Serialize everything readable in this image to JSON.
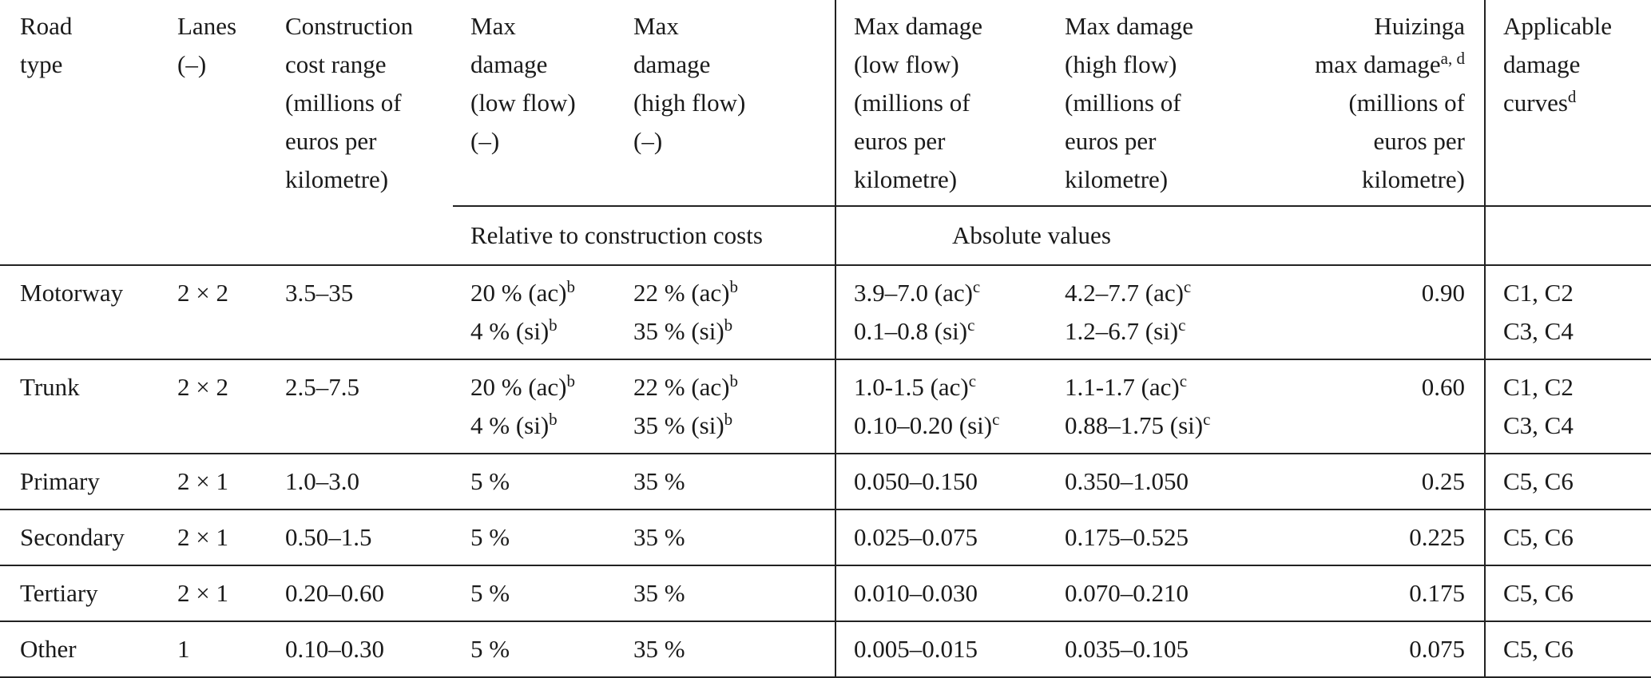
{
  "header": {
    "road_type": [
      "Road",
      "type"
    ],
    "lanes": [
      "Lanes",
      "(–)"
    ],
    "construction_cost": [
      "Construction",
      "cost range",
      "(millions of",
      "euros per",
      "kilometre)"
    ],
    "max_damage_low_rel": [
      "Max",
      "damage",
      "(low flow)",
      "(–)"
    ],
    "max_damage_high_rel": [
      "Max",
      "damage",
      "(high flow)",
      "(–)"
    ],
    "max_damage_low_abs": [
      "Max damage",
      "(low flow)",
      "(millions of",
      "euros per",
      "kilometre)"
    ],
    "max_damage_high_abs": [
      "Max damage",
      "(high flow)",
      "(millions of",
      "euros per",
      "kilometre)"
    ],
    "huizinga_first": "Huizinga",
    "huizinga_second": "max damage",
    "huizinga_sup": "a, d",
    "huizinga_rest": [
      "(millions of",
      "euros per",
      "kilometre)"
    ],
    "curves_lines": [
      "Applicable",
      "damage"
    ],
    "curves_last": "curves",
    "curves_sup": "d"
  },
  "subheader": {
    "relative": "Relative to construction costs",
    "absolute": "Absolute values"
  },
  "rows": [
    {
      "road_type": "Motorway",
      "lanes": "2 × 2",
      "cost": "3.5–35",
      "low_rel": [
        {
          "t": "20 % (ac)",
          "s": "b"
        },
        {
          "t": "4 % (si)",
          "s": "b"
        }
      ],
      "high_rel": [
        {
          "t": "22 % (ac)",
          "s": "b"
        },
        {
          "t": "35 % (si)",
          "s": "b"
        }
      ],
      "low_abs": [
        {
          "t": "3.9–7.0 (ac)",
          "s": "c"
        },
        {
          "t": "0.1–0.8 (si)",
          "s": "c"
        }
      ],
      "high_abs": [
        {
          "t": "4.2–7.7 (ac)",
          "s": "c"
        },
        {
          "t": "1.2–6.7 (si)",
          "s": "c"
        }
      ],
      "huizinga": "0.90",
      "curves": [
        "C1, C2",
        "C3, C4"
      ]
    },
    {
      "road_type": "Trunk",
      "lanes": "2 × 2",
      "cost": "2.5–7.5",
      "low_rel": [
        {
          "t": "20 % (ac)",
          "s": "b"
        },
        {
          "t": "4 % (si)",
          "s": "b"
        }
      ],
      "high_rel": [
        {
          "t": "22 % (ac)",
          "s": "b"
        },
        {
          "t": "35 % (si)",
          "s": "b"
        }
      ],
      "low_abs": [
        {
          "t": "1.0-1.5 (ac)",
          "s": "c"
        },
        {
          "t": "0.10–0.20 (si)",
          "s": "c"
        }
      ],
      "high_abs": [
        {
          "t": "1.1-1.7 (ac)",
          "s": "c"
        },
        {
          "t": "0.88–1.75 (si)",
          "s": "c"
        }
      ],
      "huizinga": "0.60",
      "curves": [
        "C1, C2",
        "C3, C4"
      ]
    },
    {
      "road_type": "Primary",
      "lanes": "2 × 1",
      "cost": "1.0–3.0",
      "low_rel": [
        {
          "t": "5 %",
          "s": ""
        }
      ],
      "high_rel": [
        {
          "t": "35 %",
          "s": ""
        }
      ],
      "low_abs": [
        {
          "t": "0.050–0.150",
          "s": ""
        }
      ],
      "high_abs": [
        {
          "t": "0.350–1.050",
          "s": ""
        }
      ],
      "huizinga": "0.25",
      "curves": [
        "C5, C6"
      ]
    },
    {
      "road_type": "Secondary",
      "lanes": "2 × 1",
      "cost": "0.50–1.5",
      "low_rel": [
        {
          "t": "5 %",
          "s": ""
        }
      ],
      "high_rel": [
        {
          "t": "35 %",
          "s": ""
        }
      ],
      "low_abs": [
        {
          "t": "0.025–0.075",
          "s": ""
        }
      ],
      "high_abs": [
        {
          "t": "0.175–0.525",
          "s": ""
        }
      ],
      "huizinga": "0.225",
      "curves": [
        "C5, C6"
      ]
    },
    {
      "road_type": "Tertiary",
      "lanes": "2 × 1",
      "cost": "0.20–0.60",
      "low_rel": [
        {
          "t": "5 %",
          "s": ""
        }
      ],
      "high_rel": [
        {
          "t": "35 %",
          "s": ""
        }
      ],
      "low_abs": [
        {
          "t": "0.010–0.030",
          "s": ""
        }
      ],
      "high_abs": [
        {
          "t": "0.070–0.210",
          "s": ""
        }
      ],
      "huizinga": "0.175",
      "curves": [
        "C5, C6"
      ]
    },
    {
      "road_type": "Other",
      "lanes": "1",
      "cost": "0.10–0.30",
      "low_rel": [
        {
          "t": "5 %",
          "s": ""
        }
      ],
      "high_rel": [
        {
          "t": "35 %",
          "s": ""
        }
      ],
      "low_abs": [
        {
          "t": "0.005–0.015",
          "s": ""
        }
      ],
      "high_abs": [
        {
          "t": "0.035–0.105",
          "s": ""
        }
      ],
      "huizinga": "0.075",
      "curves": [
        "C5, C6"
      ]
    }
  ]
}
